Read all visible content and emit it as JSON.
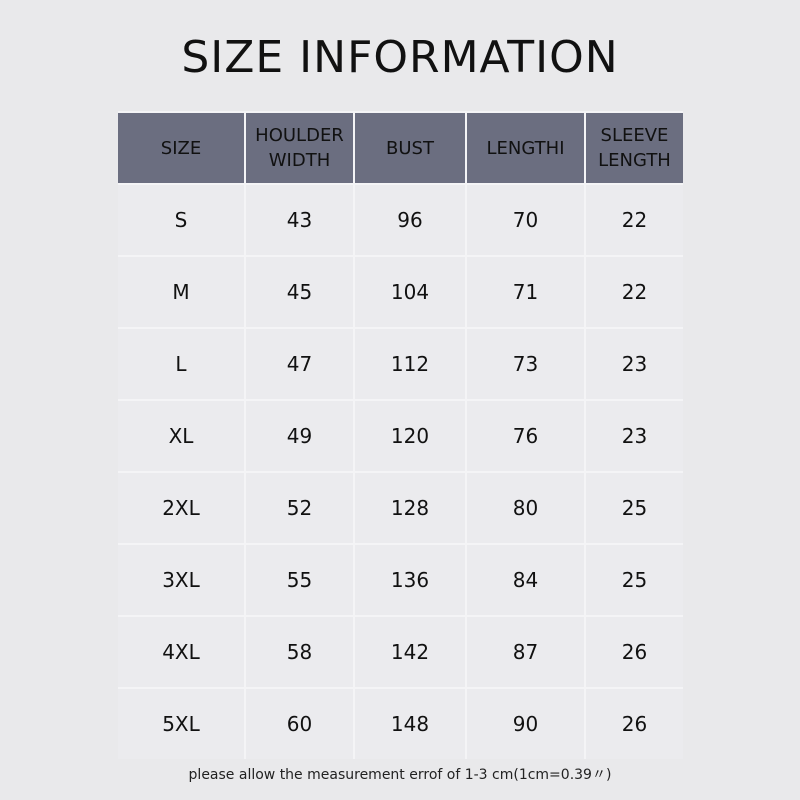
{
  "title": "SIZE INFORMATION",
  "table": {
    "headers": [
      "SIZE",
      "HOULDER WIDTH",
      "BUST",
      "LENGTHI",
      "SLEEVE LENGTH"
    ],
    "rows": [
      [
        "S",
        "43",
        "96",
        "70",
        "22"
      ],
      [
        "M",
        "45",
        "104",
        "71",
        "22"
      ],
      [
        "L",
        "47",
        "112",
        "73",
        "23"
      ],
      [
        "XL",
        "49",
        "120",
        "76",
        "23"
      ],
      [
        "2XL",
        "52",
        "128",
        "80",
        "25"
      ],
      [
        "3XL",
        "55",
        "136",
        "84",
        "25"
      ],
      [
        "4XL",
        "58",
        "142",
        "87",
        "26"
      ],
      [
        "5XL",
        "60",
        "148",
        "90",
        "26"
      ]
    ]
  },
  "note": "please allow the measurement errof of 1-3 cm(1cm=0.39〃)",
  "colors": {
    "header": "#6b6e80",
    "cell": "#ebebee",
    "background": "#e9e9eb"
  }
}
